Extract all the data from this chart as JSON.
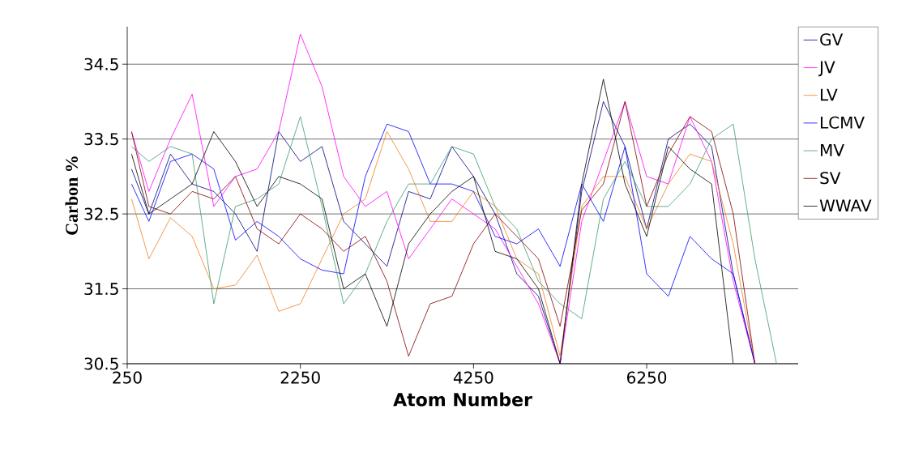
{
  "chart_data": {
    "type": "line",
    "xlabel": "Atom Number",
    "ylabel": "Carbon %",
    "x": [
      300,
      500,
      750,
      1000,
      1250,
      1500,
      1750,
      2000,
      2250,
      2500,
      2750,
      3000,
      3250,
      3500,
      3750,
      4000,
      4250,
      4500,
      4750,
      5000,
      5250,
      5500,
      5750,
      6000,
      6250,
      6500,
      6750,
      7000,
      7250,
      7500,
      7750
    ],
    "series": [
      {
        "name": "GV",
        "color": "#000080",
        "values": [
          33.1,
          32.5,
          33.3,
          32.9,
          32.8,
          32.5,
          32.0,
          33.6,
          33.2,
          33.4,
          32.4,
          32.1,
          31.8,
          32.8,
          32.7,
          33.4,
          33.0,
          32.5,
          31.7,
          31.4,
          30.5,
          32.8,
          34.0,
          33.4,
          32.3,
          33.5,
          33.7,
          33.4,
          31.7,
          30.5,
          null
        ]
      },
      {
        "name": "JV",
        "color": "#ff00ff",
        "values": [
          33.6,
          32.8,
          33.5,
          34.1,
          32.6,
          33.0,
          33.1,
          33.6,
          34.9,
          34.2,
          33.0,
          32.6,
          32.8,
          31.9,
          32.3,
          32.7,
          32.5,
          32.3,
          31.8,
          31.3,
          30.5,
          32.4,
          33.2,
          34.0,
          33.0,
          32.9,
          33.8,
          33.2,
          31.6,
          30.5,
          null
        ]
      },
      {
        "name": "LV",
        "color": "#f07f20",
        "values": [
          32.7,
          31.9,
          32.45,
          32.2,
          31.5,
          31.55,
          31.95,
          31.2,
          31.3,
          31.9,
          32.5,
          32.7,
          33.6,
          33.1,
          32.4,
          32.4,
          32.8,
          32.6,
          31.9,
          31.7,
          30.6,
          32.6,
          33.0,
          33.0,
          32.3,
          32.9,
          33.3,
          33.2,
          32.1,
          30.5,
          null
        ]
      },
      {
        "name": "LCMV",
        "color": "#0000ff",
        "values": [
          32.9,
          32.4,
          33.2,
          33.3,
          33.1,
          32.15,
          32.4,
          32.2,
          31.9,
          31.75,
          31.7,
          33.0,
          33.7,
          33.6,
          32.9,
          32.9,
          32.8,
          32.2,
          32.1,
          32.3,
          31.8,
          32.9,
          32.4,
          33.4,
          31.7,
          31.4,
          32.2,
          31.9,
          31.7,
          30.5,
          null
        ]
      },
      {
        "name": "MV",
        "color": "#3c9a6e",
        "values": [
          33.4,
          33.2,
          33.4,
          33.3,
          31.3,
          32.6,
          32.7,
          32.9,
          33.8,
          32.6,
          31.3,
          31.7,
          32.4,
          32.9,
          32.9,
          33.4,
          33.3,
          32.6,
          32.3,
          31.6,
          31.3,
          31.1,
          32.7,
          33.2,
          32.6,
          32.6,
          32.9,
          33.5,
          33.7,
          31.9,
          30.5
        ]
      },
      {
        "name": "SV",
        "color": "#800000",
        "values": [
          33.6,
          32.6,
          32.5,
          32.8,
          32.7,
          33.0,
          32.3,
          32.1,
          32.5,
          32.3,
          32.0,
          32.2,
          31.6,
          30.6,
          31.3,
          31.4,
          32.1,
          32.5,
          32.2,
          31.9,
          31.0,
          32.55,
          32.9,
          34.0,
          32.6,
          33.3,
          33.8,
          33.6,
          32.5,
          30.5,
          null
        ]
      },
      {
        "name": "WWAV",
        "color": "#000000",
        "values": [
          33.3,
          32.5,
          32.7,
          32.9,
          33.6,
          33.2,
          32.6,
          33.0,
          32.9,
          32.7,
          31.5,
          31.7,
          31.0,
          32.1,
          32.5,
          32.8,
          33.0,
          32.0,
          31.9,
          31.5,
          30.5,
          32.9,
          34.3,
          32.9,
          32.2,
          33.4,
          33.1,
          32.9,
          30.5,
          null,
          null
        ]
      }
    ],
    "xlim": [
      250,
      8000
    ],
    "ylim": [
      30.5,
      35
    ],
    "xticks": [
      250,
      2250,
      4250,
      6250
    ],
    "yticks": [
      30.5,
      31.5,
      32.5,
      33.5,
      34.5
    ],
    "grid": "y",
    "legend": "right"
  }
}
